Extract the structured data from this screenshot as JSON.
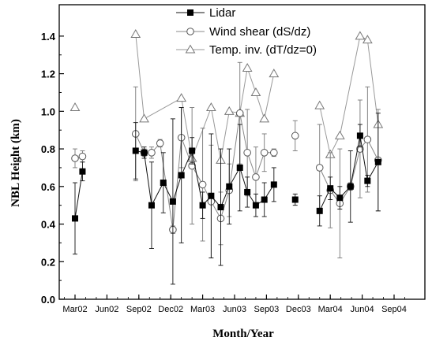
{
  "chart_data": {
    "type": "scatter",
    "xlabel": "Month/Year",
    "ylabel": "NBL Height (km)",
    "ylim": [
      0.0,
      1.5
    ],
    "yticks": [
      "0.0",
      "0.2",
      "0.4",
      "0.6",
      "0.8",
      "1.0",
      "1.2",
      "1.4"
    ],
    "x_range_months": [
      0,
      32
    ],
    "xticks": [
      {
        "label": "Mar02",
        "month": 2
      },
      {
        "label": "Jun02",
        "month": 5
      },
      {
        "label": "Sep02",
        "month": 8
      },
      {
        "label": "Dec02",
        "month": 11
      },
      {
        "label": "Mar03",
        "month": 14
      },
      {
        "label": "Jun03",
        "month": 17
      },
      {
        "label": "Sep03",
        "month": 20
      },
      {
        "label": "Dec03",
        "month": 23
      },
      {
        "label": "Mar04",
        "month": 26
      },
      {
        "label": "Jun04",
        "month": 29
      },
      {
        "label": "Sep04",
        "month": 32
      }
    ],
    "grid": false,
    "legend_position": "top",
    "series": [
      {
        "name": "Lidar",
        "marker": "square-filled",
        "points": [
          {
            "x": 2.0,
            "y": 0.43,
            "err": 0.19,
            "seg": 0
          },
          {
            "x": 2.7,
            "y": 0.68,
            "err": 0.05,
            "seg": 0
          },
          {
            "x": 7.7,
            "y": 0.79,
            "err": 0.15,
            "seg": 1
          },
          {
            "x": 8.5,
            "y": 0.78,
            "err": 0.03,
            "seg": 1
          },
          {
            "x": 9.2,
            "y": 0.5,
            "err": 0.23,
            "seg": 1
          },
          {
            "x": 10.3,
            "y": 0.62,
            "err": 0.16,
            "seg": 1
          },
          {
            "x": 11.2,
            "y": 0.52,
            "err": 0.44,
            "seg": 1
          },
          {
            "x": 12.0,
            "y": 0.66,
            "err": 0.36,
            "seg": 1
          },
          {
            "x": 13.0,
            "y": 0.79,
            "err": 0.07,
            "seg": 1
          },
          {
            "x": 14.0,
            "y": 0.5,
            "err": 0.07,
            "seg": 1
          },
          {
            "x": 14.8,
            "y": 0.55,
            "err": 0.33,
            "seg": 1
          },
          {
            "x": 15.7,
            "y": 0.49,
            "err": 0.31,
            "seg": 1
          },
          {
            "x": 16.5,
            "y": 0.6,
            "err": 0.2,
            "seg": 1
          },
          {
            "x": 17.5,
            "y": 0.7,
            "err": 0.23,
            "seg": 1
          },
          {
            "x": 18.2,
            "y": 0.57,
            "err": 0.08,
            "seg": 1
          },
          {
            "x": 19.0,
            "y": 0.5,
            "err": 0.06,
            "seg": 1
          },
          {
            "x": 19.8,
            "y": 0.53,
            "err": 0.09,
            "seg": 1
          },
          {
            "x": 20.7,
            "y": 0.61,
            "err": 0.09,
            "seg": 1
          },
          {
            "x": 22.7,
            "y": 0.53,
            "err": 0.03,
            "seg": 2
          },
          {
            "x": 25.0,
            "y": 0.47,
            "err": 0.08,
            "seg": 3
          },
          {
            "x": 26.0,
            "y": 0.59,
            "err": 0.06,
            "seg": 3
          },
          {
            "x": 26.9,
            "y": 0.54,
            "err": 0.06,
            "seg": 3
          },
          {
            "x": 27.9,
            "y": 0.6,
            "err": 0.19,
            "seg": 3
          },
          {
            "x": 28.8,
            "y": 0.87,
            "err": 0.06,
            "seg": 3
          },
          {
            "x": 29.5,
            "y": 0.63,
            "err": 0.03,
            "seg": 3
          },
          {
            "x": 30.5,
            "y": 0.73,
            "err": 0.26,
            "seg": 3
          }
        ]
      },
      {
        "name": "Wind shear (dS/dz)",
        "marker": "circle-open",
        "points": [
          {
            "x": 2.0,
            "y": 0.75,
            "err": 0.05,
            "seg": 0
          },
          {
            "x": 2.7,
            "y": 0.76,
            "err": 0.03,
            "seg": 0
          },
          {
            "x": 7.7,
            "y": 0.88,
            "err": 0.25,
            "seg": 1
          },
          {
            "x": 8.5,
            "y": 0.78,
            "err": 0.02,
            "seg": 1
          },
          {
            "x": 9.2,
            "y": 0.78,
            "err": 0.03,
            "seg": 1
          },
          {
            "x": 10.0,
            "y": 0.83,
            "err": 0.02,
            "seg": 1
          },
          {
            "x": 11.2,
            "y": 0.37,
            "err": 0.02,
            "seg": 1
          },
          {
            "x": 12.0,
            "y": 0.86,
            "err": 0.16,
            "seg": 1
          },
          {
            "x": 13.0,
            "y": 0.71,
            "err": 0.31,
            "seg": 1
          },
          {
            "x": 14.0,
            "y": 0.61,
            "err": 0.3,
            "seg": 1
          },
          {
            "x": 14.8,
            "y": 0.52,
            "err": 0.3,
            "seg": 1
          },
          {
            "x": 15.7,
            "y": 0.43,
            "err": 0.14,
            "seg": 1
          },
          {
            "x": 16.5,
            "y": 0.58,
            "err": 0.14,
            "seg": 1
          },
          {
            "x": 17.5,
            "y": 0.99,
            "err": 0.27,
            "seg": 1
          },
          {
            "x": 18.2,
            "y": 0.78,
            "err": 0.23,
            "seg": 1
          },
          {
            "x": 19.0,
            "y": 0.65,
            "err": 0.16,
            "seg": 1
          },
          {
            "x": 19.8,
            "y": 0.78,
            "err": 0.1,
            "seg": 1
          },
          {
            "x": 20.7,
            "y": 0.78,
            "err": 0.02,
            "seg": 1
          },
          {
            "x": 22.7,
            "y": 0.87,
            "err": 0.08,
            "seg": 2
          },
          {
            "x": 25.0,
            "y": 0.7,
            "err": 0.23,
            "seg": 3
          },
          {
            "x": 26.0,
            "y": 0.58,
            "err": 0.2,
            "seg": 3
          },
          {
            "x": 26.9,
            "y": 0.51,
            "err": 0.29,
            "seg": 3
          },
          {
            "x": 27.9,
            "y": 0.6,
            "err": 0.02,
            "seg": 3
          },
          {
            "x": 28.8,
            "y": 0.8,
            "err": 0.26,
            "seg": 3
          },
          {
            "x": 29.5,
            "y": 0.85,
            "err": 0.28,
            "seg": 3
          },
          {
            "x": 30.5,
            "y": 0.74,
            "err": 0.27,
            "seg": 3
          }
        ]
      },
      {
        "name": "Temp. inv. (dT/dz=0)",
        "marker": "triangle-open",
        "points": [
          {
            "x": 2.0,
            "y": 1.02,
            "seg": 0
          },
          {
            "x": 7.7,
            "y": 1.41,
            "seg": 1
          },
          {
            "x": 8.5,
            "y": 0.96,
            "seg": 1
          },
          {
            "x": 12.0,
            "y": 1.07,
            "seg": 1
          },
          {
            "x": 13.0,
            "y": 0.75,
            "seg": 1
          },
          {
            "x": 14.8,
            "y": 1.02,
            "seg": 1
          },
          {
            "x": 15.7,
            "y": 0.74,
            "seg": 1
          },
          {
            "x": 16.5,
            "y": 1.0,
            "seg": 1
          },
          {
            "x": 17.5,
            "y": 0.99,
            "seg": 1
          },
          {
            "x": 18.2,
            "y": 1.23,
            "seg": 1
          },
          {
            "x": 19.0,
            "y": 1.1,
            "seg": 1
          },
          {
            "x": 19.8,
            "y": 0.96,
            "seg": 1
          },
          {
            "x": 20.7,
            "y": 1.2,
            "seg": 1
          },
          {
            "x": 25.0,
            "y": 1.03,
            "seg": 3
          },
          {
            "x": 26.0,
            "y": 0.77,
            "seg": 3
          },
          {
            "x": 26.9,
            "y": 0.87,
            "seg": 3
          },
          {
            "x": 28.8,
            "y": 1.4,
            "seg": 3
          },
          {
            "x": 29.5,
            "y": 1.38,
            "seg": 3
          },
          {
            "x": 30.5,
            "y": 0.93,
            "seg": 3
          }
        ]
      }
    ]
  }
}
